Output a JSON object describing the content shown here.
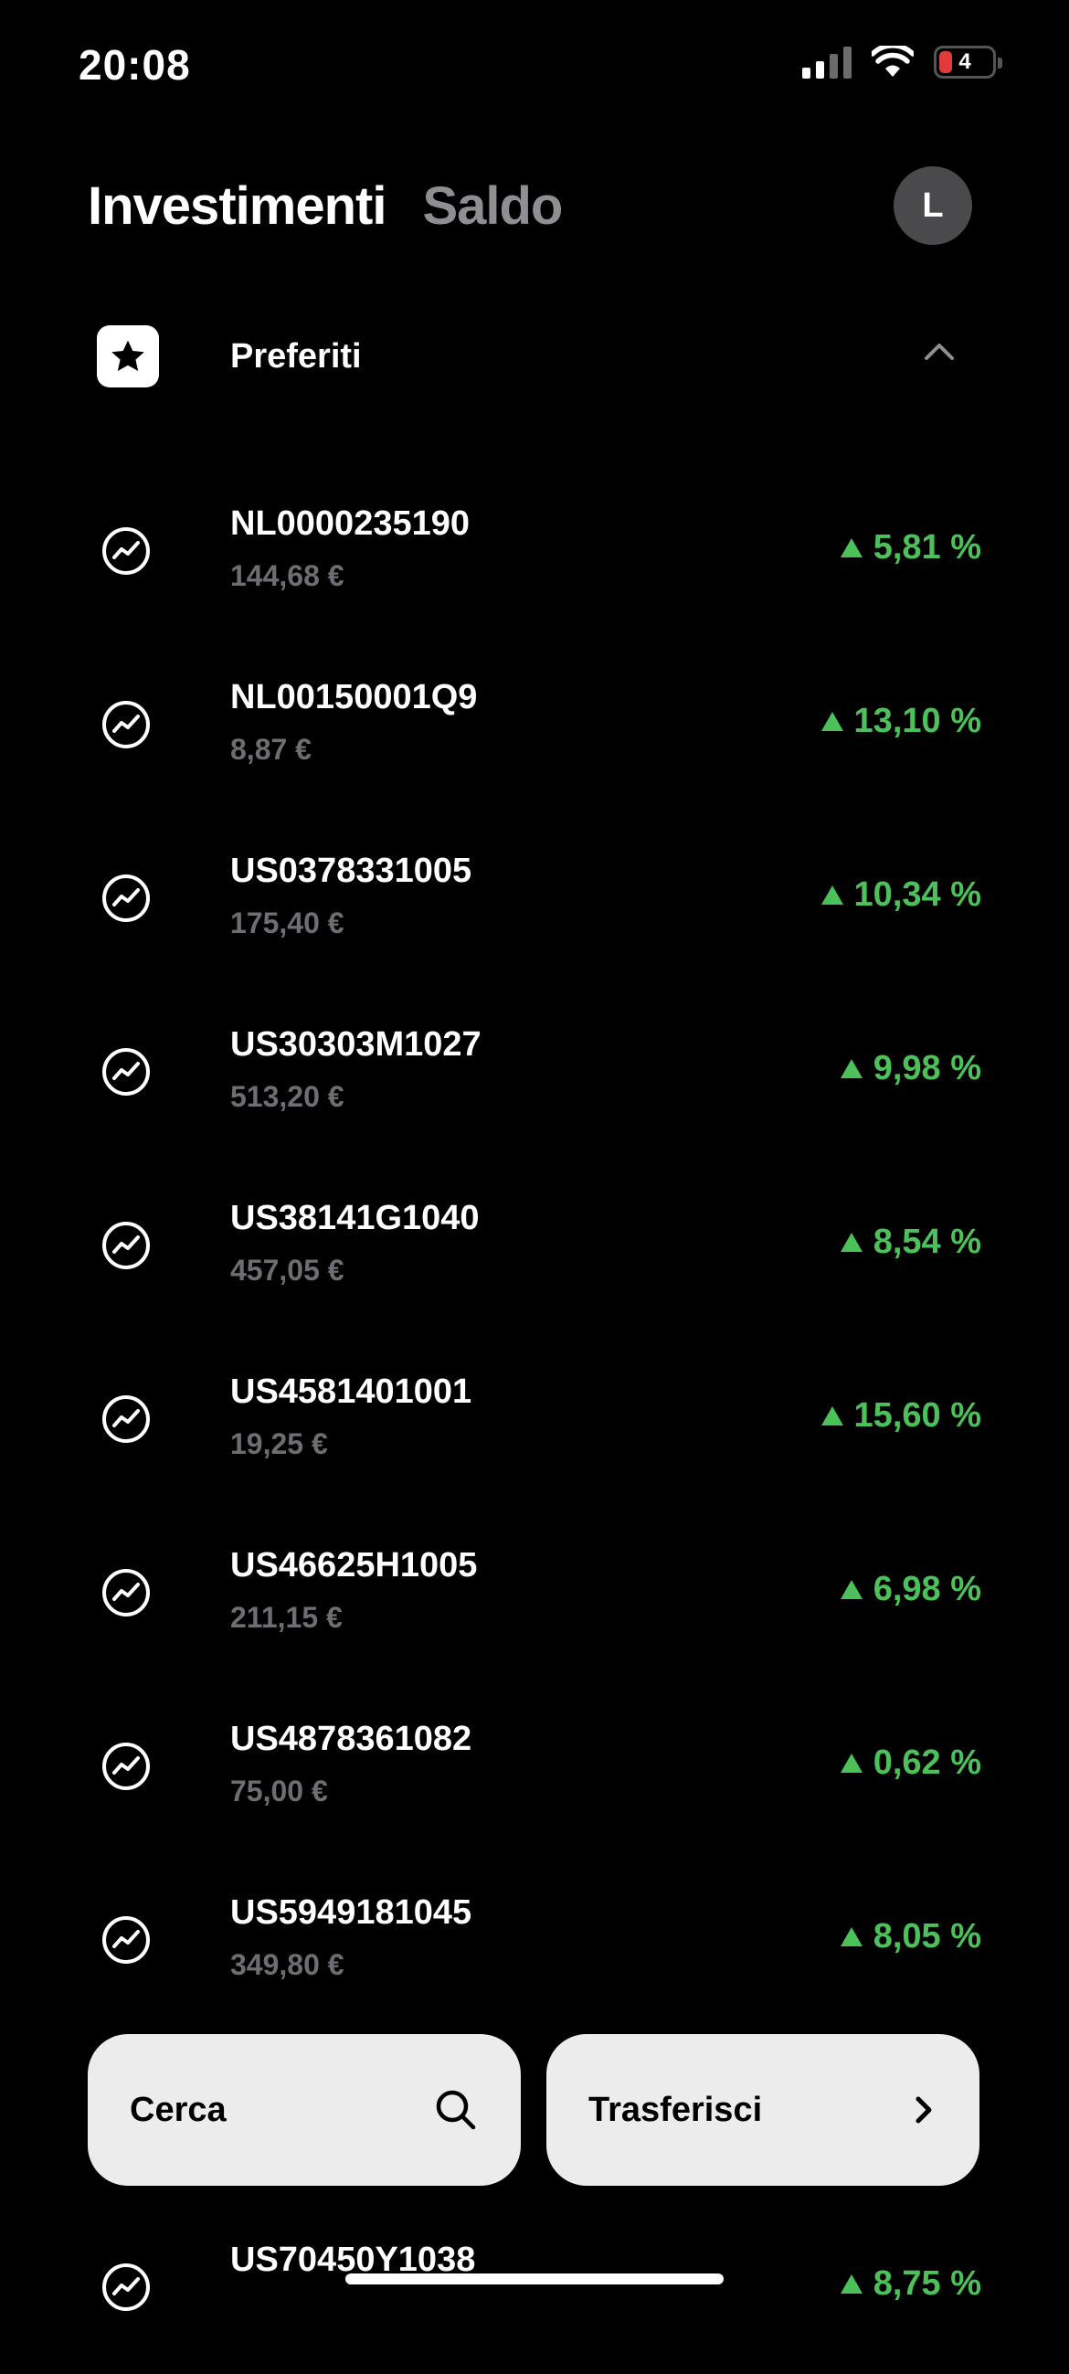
{
  "status_bar": {
    "time": "20:08",
    "battery": "4"
  },
  "header": {
    "tab_investments": "Investimenti",
    "tab_balance": "Saldo",
    "avatar_initial": "L"
  },
  "favorites": {
    "title": "Preferiti"
  },
  "items": [
    {
      "ticker": "NL0000235190",
      "price": "144,68 €",
      "change": "5,81 %"
    },
    {
      "ticker": "NL00150001Q9",
      "price": "8,87 €",
      "change": "13,10 %"
    },
    {
      "ticker": "US0378331005",
      "price": "175,40 €",
      "change": "10,34 %"
    },
    {
      "ticker": "US30303M1027",
      "price": "513,20 €",
      "change": "9,98 %"
    },
    {
      "ticker": "US38141G1040",
      "price": "457,05 €",
      "change": "8,54 %"
    },
    {
      "ticker": "US4581401001",
      "price": "19,25 €",
      "change": "15,60 %"
    },
    {
      "ticker": "US46625H1005",
      "price": "211,15 €",
      "change": "6,98 %"
    },
    {
      "ticker": "US4878361082",
      "price": "75,00 €",
      "change": "0,62 %"
    },
    {
      "ticker": "US5949181045",
      "price": "349,80 €",
      "change": "8,05 %"
    },
    {
      "ticker": "US70450Y1038",
      "price": "",
      "change": "8,75 %"
    }
  ],
  "actions": {
    "search_label": "Cerca",
    "transfer_label": "Trasferisci"
  },
  "colors": {
    "positive": "#4cc15a",
    "background": "#000000",
    "button_bg": "#ececec"
  },
  "icons": {
    "row_icon": "trend-circle-icon",
    "favorites_icon": "star-icon"
  }
}
